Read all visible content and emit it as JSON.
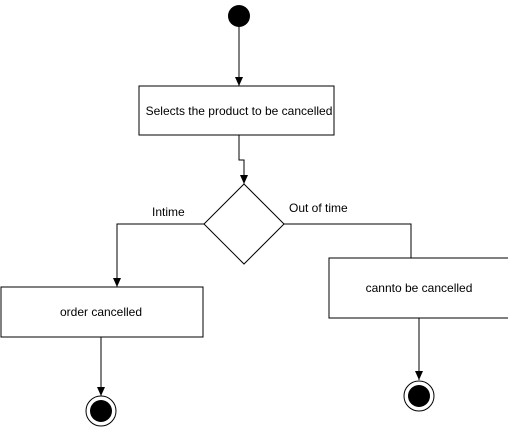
{
  "diagram": {
    "type": "activity-diagram",
    "nodes": {
      "select_product": "Selects the product to be cancelled",
      "order_cancelled": "order cancelled",
      "cannot_cancel": "cannto be cancelled"
    },
    "edges": {
      "in_time": "Intime",
      "out_of_time": "Out of time"
    },
    "colors": {
      "stroke": "#000000",
      "fill": "#ffffff",
      "text": "#000000"
    }
  }
}
